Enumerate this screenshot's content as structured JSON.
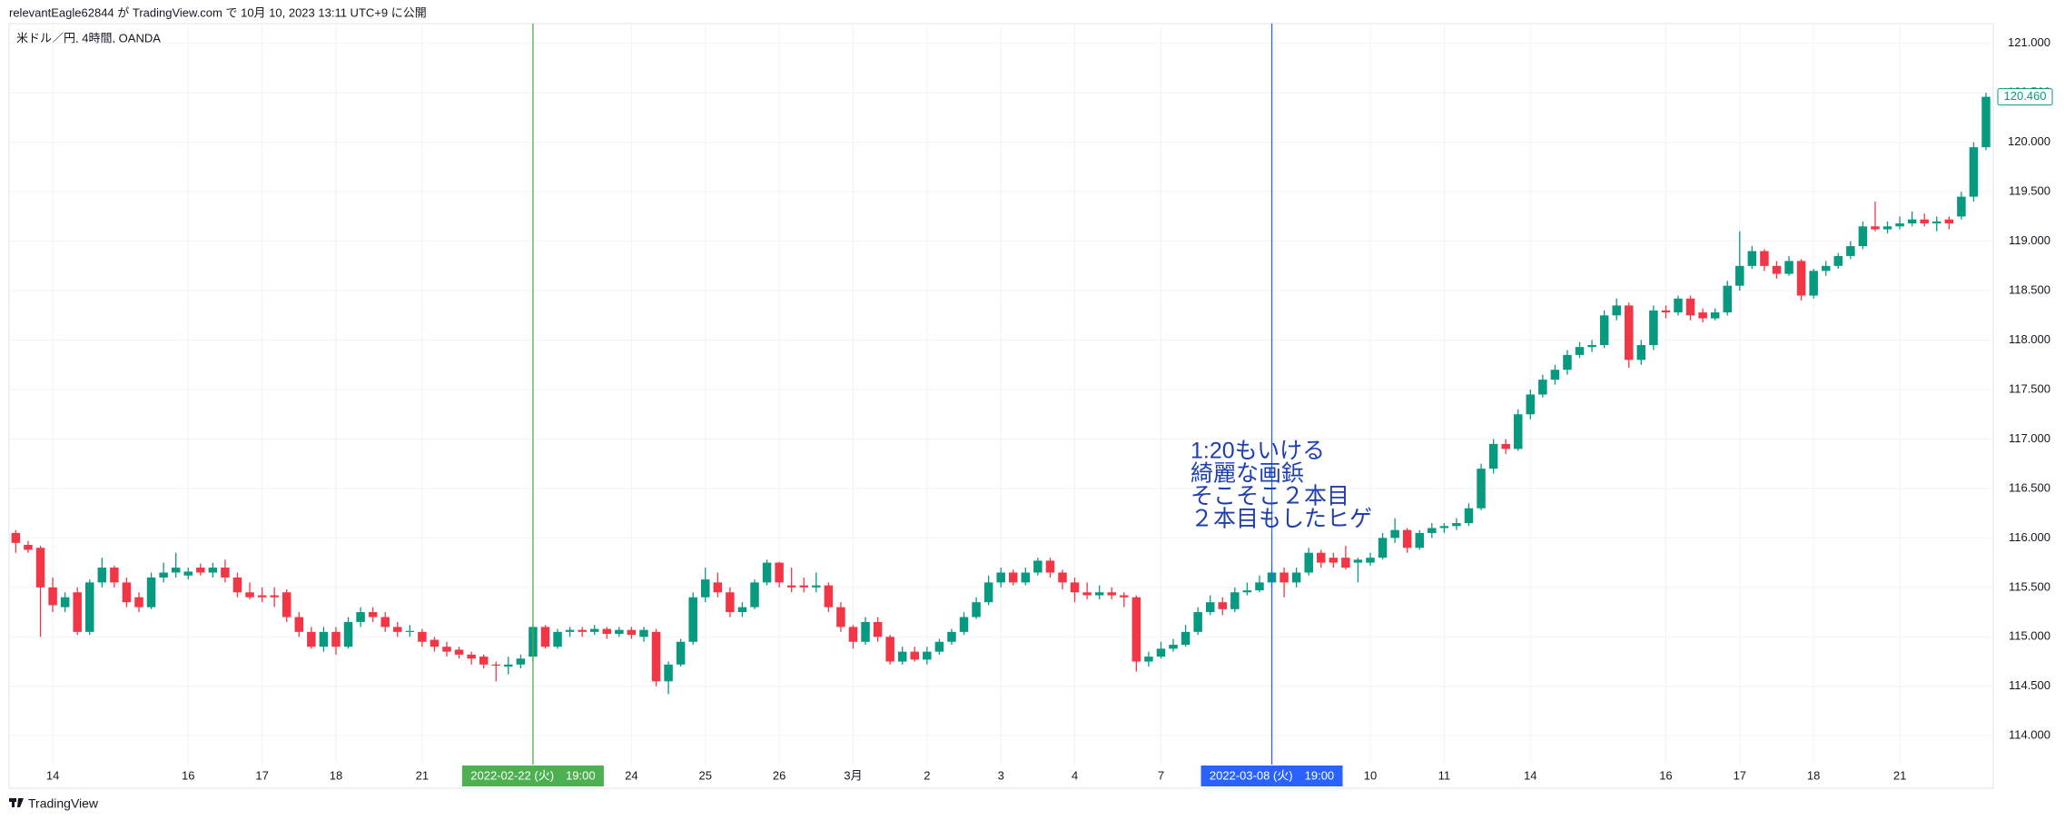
{
  "header": {
    "published": "relevantEagle62844 が TradingView.com で 10月 10, 2023 13:11 UTC+9 に公開"
  },
  "footer": {
    "brand": "TradingView"
  },
  "chart_data": {
    "type": "candlestick",
    "title": "米ドル／円, 4時間, OANDA",
    "up_color": "#089981",
    "down_color": "#f23645",
    "grid": true,
    "ylim": [
      113.8,
      121.2
    ],
    "yticks": [
      {
        "value": 114,
        "label": "114.000"
      },
      {
        "value": 114.5,
        "label": "114.500"
      },
      {
        "value": 115,
        "label": "115.000"
      },
      {
        "value": 115.5,
        "label": "115.500"
      },
      {
        "value": 116,
        "label": "116.000"
      },
      {
        "value": 116.5,
        "label": "116.500"
      },
      {
        "value": 117,
        "label": "117.000"
      },
      {
        "value": 117.5,
        "label": "117.500"
      },
      {
        "value": 118,
        "label": "118.000"
      },
      {
        "value": 118.5,
        "label": "118.500"
      },
      {
        "value": 119,
        "label": "119.000"
      },
      {
        "value": 119.5,
        "label": "119.500"
      },
      {
        "value": 120,
        "label": "120.000"
      },
      {
        "value": 120.5,
        "label": "120.500"
      },
      {
        "value": 121,
        "label": "121.000"
      }
    ],
    "last_price": {
      "value": 120.46,
      "label": "120.460"
    },
    "annotation": {
      "color": "#1e3fae",
      "lines": [
        "1:20もいける",
        "綺麗な画鋲",
        "そこそこ２本目",
        "２本目もしたヒゲ"
      ]
    },
    "categories": [
      null,
      null,
      null,
      "14",
      null,
      null,
      null,
      null,
      null,
      null,
      null,
      null,
      null,
      null,
      "16",
      null,
      null,
      null,
      null,
      null,
      "17",
      null,
      null,
      null,
      null,
      null,
      "18",
      null,
      null,
      null,
      null,
      null,
      null,
      "21",
      null,
      null,
      null,
      null,
      null,
      null,
      null,
      null,
      {
        "label": "2022-02-22 (火)　19:00",
        "marker_color": "#4caf50"
      },
      null,
      null,
      null,
      null,
      null,
      null,
      null,
      "24",
      null,
      null,
      null,
      null,
      null,
      "25",
      null,
      null,
      null,
      null,
      null,
      "26",
      null,
      null,
      null,
      null,
      null,
      "3月",
      null,
      null,
      null,
      null,
      null,
      "2",
      null,
      null,
      null,
      null,
      null,
      "3",
      null,
      null,
      null,
      null,
      null,
      "4",
      null,
      null,
      null,
      null,
      null,
      null,
      "7",
      null,
      null,
      null,
      null,
      null,
      null,
      null,
      null,
      {
        "label": "2022-03-08 (火)　19:00",
        "marker_color": "#2962ff"
      },
      null,
      null,
      null,
      null,
      null,
      null,
      null,
      "10",
      null,
      null,
      null,
      null,
      null,
      "11",
      null,
      null,
      null,
      null,
      null,
      null,
      "14",
      null,
      null,
      null,
      null,
      null,
      null,
      null,
      null,
      null,
      null,
      "16",
      null,
      null,
      null,
      null,
      null,
      "17",
      null,
      null,
      null,
      null,
      null,
      "18",
      null,
      null,
      null,
      null,
      null,
      null,
      "21",
      null,
      null,
      null,
      null,
      null,
      null,
      null
    ],
    "candles": [
      [
        116.05,
        116.08,
        115.85,
        115.95
      ],
      [
        115.93,
        115.97,
        115.85,
        115.88
      ],
      [
        115.9,
        115.92,
        115.0,
        115.5
      ],
      [
        115.5,
        115.6,
        115.25,
        115.32
      ],
      [
        115.3,
        115.45,
        115.25,
        115.4
      ],
      [
        115.45,
        115.5,
        115.02,
        115.05
      ],
      [
        115.05,
        115.58,
        115.02,
        115.55
      ],
      [
        115.55,
        115.8,
        115.5,
        115.7
      ],
      [
        115.7,
        115.72,
        115.5,
        115.55
      ],
      [
        115.55,
        115.6,
        115.3,
        115.35
      ],
      [
        115.4,
        115.45,
        115.25,
        115.3
      ],
      [
        115.3,
        115.65,
        115.28,
        115.6
      ],
      [
        115.6,
        115.75,
        115.55,
        115.65
      ],
      [
        115.65,
        115.85,
        115.6,
        115.7
      ],
      [
        115.62,
        115.7,
        115.58,
        115.66
      ],
      [
        115.7,
        115.74,
        115.62,
        115.65
      ],
      [
        115.65,
        115.75,
        115.6,
        115.7
      ],
      [
        115.7,
        115.78,
        115.55,
        115.6
      ],
      [
        115.6,
        115.65,
        115.4,
        115.45
      ],
      [
        115.45,
        115.55,
        115.38,
        115.4
      ],
      [
        115.42,
        115.5,
        115.35,
        115.4
      ],
      [
        115.42,
        115.5,
        115.3,
        115.4
      ],
      [
        115.45,
        115.48,
        115.15,
        115.2
      ],
      [
        115.2,
        115.25,
        115.0,
        115.05
      ],
      [
        115.05,
        115.1,
        114.88,
        114.9
      ],
      [
        114.9,
        115.1,
        114.85,
        115.05
      ],
      [
        115.05,
        115.1,
        114.82,
        114.9
      ],
      [
        114.9,
        115.2,
        114.88,
        115.15
      ],
      [
        115.15,
        115.3,
        115.1,
        115.25
      ],
      [
        115.25,
        115.3,
        115.15,
        115.2
      ],
      [
        115.2,
        115.25,
        115.05,
        115.1
      ],
      [
        115.1,
        115.15,
        115.0,
        115.05
      ],
      [
        115.05,
        115.12,
        115.0,
        115.06
      ],
      [
        115.05,
        115.08,
        114.9,
        114.95
      ],
      [
        114.97,
        115.0,
        114.85,
        114.9
      ],
      [
        114.9,
        114.95,
        114.8,
        114.85
      ],
      [
        114.87,
        114.9,
        114.78,
        114.82
      ],
      [
        114.82,
        114.85,
        114.72,
        114.78
      ],
      [
        114.8,
        114.82,
        114.68,
        114.72
      ],
      [
        114.72,
        114.75,
        114.55,
        114.71
      ],
      [
        114.7,
        114.8,
        114.62,
        114.72
      ],
      [
        114.72,
        114.82,
        114.68,
        114.78
      ],
      [
        114.8,
        115.12,
        114.75,
        115.1
      ],
      [
        115.1,
        115.12,
        114.88,
        114.9
      ],
      [
        114.9,
        115.08,
        114.88,
        115.05
      ],
      [
        115.05,
        115.1,
        115.0,
        115.07
      ],
      [
        115.07,
        115.1,
        115.0,
        115.05
      ],
      [
        115.05,
        115.12,
        115.02,
        115.08
      ],
      [
        115.08,
        115.1,
        114.98,
        115.03
      ],
      [
        115.03,
        115.1,
        115.0,
        115.07
      ],
      [
        115.07,
        115.1,
        114.98,
        115.02
      ],
      [
        115.0,
        115.1,
        114.95,
        115.07
      ],
      [
        115.05,
        115.08,
        114.5,
        114.55
      ],
      [
        114.55,
        114.75,
        114.42,
        114.72
      ],
      [
        114.72,
        114.98,
        114.7,
        114.95
      ],
      [
        114.95,
        115.45,
        114.92,
        115.4
      ],
      [
        115.4,
        115.7,
        115.35,
        115.58
      ],
      [
        115.55,
        115.65,
        115.4,
        115.45
      ],
      [
        115.45,
        115.5,
        115.2,
        115.25
      ],
      [
        115.25,
        115.35,
        115.2,
        115.3
      ],
      [
        115.3,
        115.58,
        115.28,
        115.55
      ],
      [
        115.55,
        115.78,
        115.52,
        115.75
      ],
      [
        115.75,
        115.76,
        115.5,
        115.55
      ],
      [
        115.52,
        115.7,
        115.45,
        115.5
      ],
      [
        115.52,
        115.6,
        115.45,
        115.5
      ],
      [
        115.5,
        115.65,
        115.45,
        115.52
      ],
      [
        115.52,
        115.55,
        115.25,
        115.3
      ],
      [
        115.3,
        115.35,
        115.05,
        115.1
      ],
      [
        115.1,
        115.12,
        114.88,
        114.95
      ],
      [
        114.95,
        115.2,
        114.92,
        115.15
      ],
      [
        115.15,
        115.2,
        114.95,
        115.0
      ],
      [
        115.0,
        115.02,
        114.72,
        114.75
      ],
      [
        114.75,
        114.9,
        114.72,
        114.85
      ],
      [
        114.85,
        114.9,
        114.75,
        114.77
      ],
      [
        114.77,
        114.9,
        114.72,
        114.85
      ],
      [
        114.85,
        114.98,
        114.82,
        114.95
      ],
      [
        114.95,
        115.08,
        114.92,
        115.05
      ],
      [
        115.05,
        115.25,
        115.02,
        115.2
      ],
      [
        115.2,
        115.4,
        115.18,
        115.35
      ],
      [
        115.35,
        115.62,
        115.32,
        115.55
      ],
      [
        115.55,
        115.7,
        115.5,
        115.65
      ],
      [
        115.65,
        115.68,
        115.52,
        115.55
      ],
      [
        115.55,
        115.7,
        115.52,
        115.65
      ],
      [
        115.65,
        115.8,
        115.62,
        115.77
      ],
      [
        115.77,
        115.8,
        115.6,
        115.65
      ],
      [
        115.65,
        115.68,
        115.48,
        115.55
      ],
      [
        115.55,
        115.6,
        115.35,
        115.45
      ],
      [
        115.45,
        115.55,
        115.38,
        115.42
      ],
      [
        115.42,
        115.52,
        115.38,
        115.45
      ],
      [
        115.45,
        115.5,
        115.38,
        115.42
      ],
      [
        115.42,
        115.45,
        115.3,
        115.4
      ],
      [
        115.4,
        115.42,
        114.65,
        114.75
      ],
      [
        114.75,
        114.85,
        114.7,
        114.8
      ],
      [
        114.8,
        114.95,
        114.78,
        114.88
      ],
      [
        114.88,
        114.98,
        114.85,
        114.92
      ],
      [
        114.92,
        115.12,
        114.9,
        115.05
      ],
      [
        115.05,
        115.3,
        115.02,
        115.25
      ],
      [
        115.25,
        115.42,
        115.22,
        115.35
      ],
      [
        115.35,
        115.4,
        115.22,
        115.28
      ],
      [
        115.28,
        115.5,
        115.25,
        115.45
      ],
      [
        115.45,
        115.55,
        115.42,
        115.47
      ],
      [
        115.47,
        115.62,
        115.45,
        115.55
      ],
      [
        115.55,
        115.7,
        115.5,
        115.65
      ],
      [
        115.65,
        115.7,
        115.4,
        115.55
      ],
      [
        115.55,
        115.7,
        115.5,
        115.65
      ],
      [
        115.65,
        115.9,
        115.62,
        115.85
      ],
      [
        115.85,
        115.88,
        115.7,
        115.75
      ],
      [
        115.8,
        115.85,
        115.7,
        115.75
      ],
      [
        115.8,
        115.92,
        115.68,
        115.7
      ],
      [
        115.75,
        115.8,
        115.55,
        115.78
      ],
      [
        115.75,
        115.85,
        115.72,
        115.8
      ],
      [
        115.8,
        116.05,
        115.78,
        116.0
      ],
      [
        116.0,
        116.2,
        115.95,
        116.08
      ],
      [
        116.08,
        116.1,
        115.85,
        115.9
      ],
      [
        115.9,
        116.08,
        115.88,
        116.05
      ],
      [
        116.05,
        116.15,
        116.0,
        116.1
      ],
      [
        116.1,
        116.15,
        116.05,
        116.12
      ],
      [
        116.12,
        116.2,
        116.08,
        116.15
      ],
      [
        116.15,
        116.35,
        116.12,
        116.3
      ],
      [
        116.3,
        116.75,
        116.28,
        116.7
      ],
      [
        116.7,
        117.0,
        116.65,
        116.95
      ],
      [
        116.95,
        117.0,
        116.85,
        116.9
      ],
      [
        116.9,
        117.3,
        116.88,
        117.25
      ],
      [
        117.25,
        117.5,
        117.2,
        117.45
      ],
      [
        117.45,
        117.65,
        117.42,
        117.6
      ],
      [
        117.6,
        117.75,
        117.55,
        117.7
      ],
      [
        117.7,
        117.9,
        117.65,
        117.85
      ],
      [
        117.85,
        117.98,
        117.82,
        117.93
      ],
      [
        117.93,
        118.0,
        117.88,
        117.95
      ],
      [
        117.95,
        118.3,
        117.92,
        118.25
      ],
      [
        118.25,
        118.42,
        118.2,
        118.35
      ],
      [
        118.35,
        118.38,
        117.72,
        117.8
      ],
      [
        117.8,
        118.0,
        117.75,
        117.95
      ],
      [
        117.95,
        118.35,
        117.9,
        118.3
      ],
      [
        118.3,
        118.35,
        118.22,
        118.28
      ],
      [
        118.28,
        118.45,
        118.25,
        118.42
      ],
      [
        118.42,
        118.45,
        118.2,
        118.25
      ],
      [
        118.28,
        118.32,
        118.18,
        118.22
      ],
      [
        118.22,
        118.32,
        118.2,
        118.28
      ],
      [
        118.28,
        118.6,
        118.25,
        118.55
      ],
      [
        118.55,
        119.1,
        118.5,
        118.75
      ],
      [
        118.75,
        118.95,
        118.72,
        118.9
      ],
      [
        118.9,
        118.92,
        118.7,
        118.75
      ],
      [
        118.75,
        118.8,
        118.62,
        118.67
      ],
      [
        118.67,
        118.85,
        118.65,
        118.8
      ],
      [
        118.8,
        118.82,
        118.4,
        118.45
      ],
      [
        118.45,
        118.72,
        118.42,
        118.7
      ],
      [
        118.7,
        118.8,
        118.65,
        118.75
      ],
      [
        118.75,
        118.88,
        118.72,
        118.85
      ],
      [
        118.85,
        119.0,
        118.82,
        118.95
      ],
      [
        118.95,
        119.2,
        118.92,
        119.15
      ],
      [
        119.15,
        119.4,
        119.1,
        119.12
      ],
      [
        119.12,
        119.2,
        119.08,
        119.15
      ],
      [
        119.15,
        119.25,
        119.12,
        119.18
      ],
      [
        119.18,
        119.3,
        119.15,
        119.22
      ],
      [
        119.22,
        119.28,
        119.15,
        119.18
      ],
      [
        119.18,
        119.25,
        119.1,
        119.2
      ],
      [
        119.22,
        119.25,
        119.12,
        119.18
      ],
      [
        119.25,
        119.5,
        119.22,
        119.45
      ],
      [
        119.45,
        120.0,
        119.4,
        119.95
      ],
      [
        119.95,
        120.5,
        119.92,
        120.46
      ]
    ]
  }
}
